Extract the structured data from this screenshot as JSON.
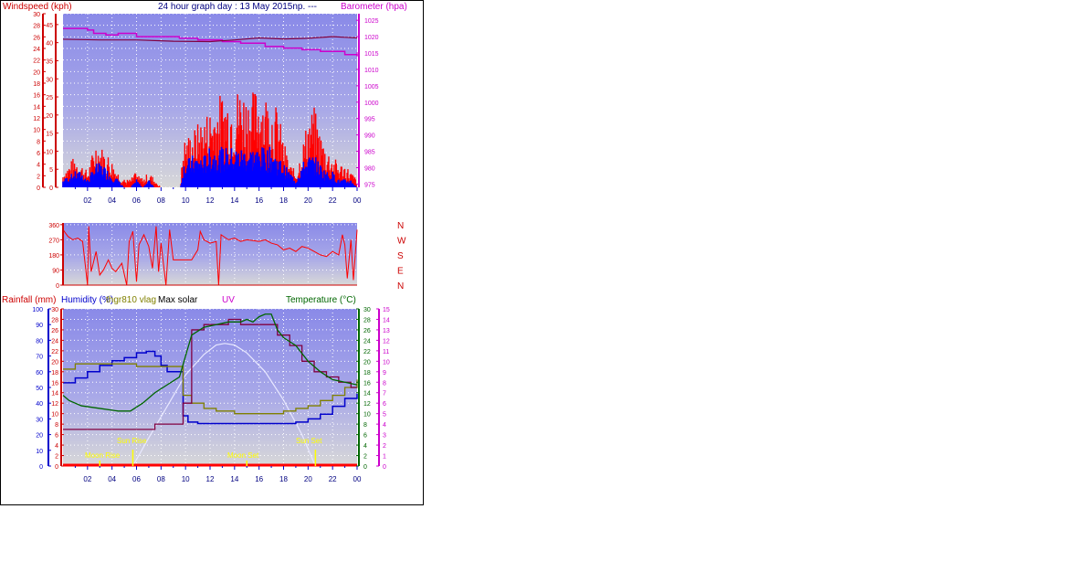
{
  "colors": {
    "wind_gust": "#ff0000",
    "wind_avg": "#0000ff",
    "barometer": "#cc00cc",
    "barometer2": "#800040",
    "direction": "#ff0000",
    "humidity": "#0000cc",
    "temperature": "#006600",
    "sensor": "#808000",
    "uv": "#cc00cc",
    "solar_max": "#e8e8ff",
    "rain": "#ff0000",
    "astro": "#ffff00",
    "axis_red": "#cc0000",
    "axis_blue": "#0000cc",
    "axis_green": "#006600",
    "axis_magenta": "#cc00cc"
  },
  "header": {
    "wind_label": "Windspeed (kph)",
    "title": "24 hour graph day : 13 May 2015np. ---",
    "baro_label": "Barometer (hpa)"
  },
  "bottom_header": {
    "rain_label": "Rainfall (mm)",
    "humidity_label": "Humidity (%)",
    "sensor_label": "thgr810 vlag",
    "solar_label": "Max solar",
    "uv_label": "UV",
    "temp_label": "Temperature (°C)"
  },
  "hour_labels": [
    "02",
    "04",
    "06",
    "08",
    "10",
    "12",
    "14",
    "16",
    "18",
    "20",
    "22",
    "00"
  ],
  "astro": {
    "moon_rise": "Moon Rise",
    "sun_rise": "Sun Rise",
    "moon_set": "Moon Set",
    "sun_set": "Sun Set"
  },
  "chart_data": [
    {
      "type": "bar",
      "name_key": "wind",
      "x_range": [
        0,
        24
      ],
      "left_axis": {
        "ticks": [
          0,
          2,
          4,
          6,
          8,
          10,
          12,
          14,
          16,
          18,
          20,
          22,
          24,
          26,
          28,
          30
        ],
        "range": [
          0,
          30
        ]
      },
      "inner_axis": {
        "ticks": [
          0,
          5,
          10,
          15,
          20,
          25,
          30,
          35,
          40,
          45
        ],
        "range": [
          0,
          48
        ]
      },
      "right_axis": {
        "ticks": [
          975,
          980,
          985,
          990,
          995,
          1000,
          1005,
          1010,
          1015,
          1020,
          1025
        ],
        "range": [
          974,
          1027
        ]
      },
      "gust_profile_kph": [
        [
          0,
          2
        ],
        [
          1,
          4
        ],
        [
          1.5,
          3
        ],
        [
          2,
          2
        ],
        [
          2.7,
          6
        ],
        [
          3.2,
          5
        ],
        [
          3.8,
          4
        ],
        [
          4.5,
          2
        ],
        [
          5,
          1
        ],
        [
          5.5,
          1
        ],
        [
          6,
          2
        ],
        [
          6.5,
          1
        ],
        [
          7,
          2
        ],
        [
          7.5,
          1
        ],
        [
          8,
          0
        ],
        [
          8.5,
          0
        ],
        [
          9,
          0
        ],
        [
          9.6,
          0
        ],
        [
          9.8,
          6
        ],
        [
          10.5,
          7
        ],
        [
          11,
          8
        ],
        [
          11.5,
          9
        ],
        [
          12,
          10
        ],
        [
          12.5,
          11
        ],
        [
          13,
          12
        ],
        [
          13.5,
          12
        ],
        [
          14,
          12
        ],
        [
          14.5,
          13
        ],
        [
          15,
          12
        ],
        [
          15.5,
          12
        ],
        [
          16,
          13
        ],
        [
          16.5,
          12
        ],
        [
          17,
          11
        ],
        [
          17.5,
          10
        ],
        [
          18,
          6
        ],
        [
          18.5,
          3
        ],
        [
          19,
          2
        ],
        [
          19.5,
          5
        ],
        [
          20,
          9
        ],
        [
          20.5,
          10
        ],
        [
          21,
          7
        ],
        [
          21.5,
          5
        ],
        [
          22,
          4
        ],
        [
          22.5,
          3
        ],
        [
          23,
          3
        ],
        [
          23.5,
          2
        ],
        [
          24,
          1
        ]
      ],
      "avg_profile_kph": [
        [
          0,
          1
        ],
        [
          1,
          2
        ],
        [
          1.5,
          2
        ],
        [
          2,
          1
        ],
        [
          2.7,
          3
        ],
        [
          3.2,
          3
        ],
        [
          3.8,
          2
        ],
        [
          4.5,
          1
        ],
        [
          5,
          0
        ],
        [
          5.5,
          0
        ],
        [
          6,
          1
        ],
        [
          6.5,
          0
        ],
        [
          7,
          1
        ],
        [
          7.5,
          0
        ],
        [
          8,
          0
        ],
        [
          8.5,
          0
        ],
        [
          9,
          0
        ],
        [
          9.6,
          0
        ],
        [
          9.8,
          3
        ],
        [
          10.5,
          4
        ],
        [
          11,
          4
        ],
        [
          11.5,
          4
        ],
        [
          12,
          5
        ],
        [
          12.5,
          5
        ],
        [
          13,
          5
        ],
        [
          13.5,
          5
        ],
        [
          14,
          5
        ],
        [
          14.5,
          5
        ],
        [
          15,
          5
        ],
        [
          15.5,
          5
        ],
        [
          16,
          5
        ],
        [
          16.5,
          5
        ],
        [
          17,
          5
        ],
        [
          17.5,
          4
        ],
        [
          18,
          3
        ],
        [
          18.5,
          2
        ],
        [
          19,
          1
        ],
        [
          19.5,
          3
        ],
        [
          20,
          4
        ],
        [
          20.5,
          4
        ],
        [
          21,
          3
        ],
        [
          21.5,
          2
        ],
        [
          22,
          2
        ],
        [
          22.5,
          1
        ],
        [
          23,
          1
        ],
        [
          23.5,
          1
        ],
        [
          24,
          0
        ]
      ],
      "barometer_hpa": [
        [
          0,
          1022.5
        ],
        [
          2,
          1022
        ],
        [
          2.5,
          1021
        ],
        [
          3.5,
          1020.5
        ],
        [
          4.5,
          1021
        ],
        [
          6,
          1020
        ],
        [
          8,
          1020
        ],
        [
          9.5,
          1019.5
        ],
        [
          11,
          1019
        ],
        [
          13,
          1018.5
        ],
        [
          14.5,
          1018
        ],
        [
          16.5,
          1017
        ],
        [
          18,
          1016.5
        ],
        [
          19.5,
          1016
        ],
        [
          21,
          1015.5
        ],
        [
          23,
          1014.5
        ],
        [
          24,
          1014
        ]
      ],
      "barometer2_hpa": [
        [
          0,
          1019.2
        ],
        [
          3,
          1019
        ],
        [
          6,
          1019
        ],
        [
          9,
          1018.6
        ],
        [
          12,
          1018.5
        ],
        [
          14,
          1019
        ],
        [
          16,
          1019.6
        ],
        [
          18,
          1019.3
        ],
        [
          20,
          1019.5
        ],
        [
          22,
          1020
        ],
        [
          24,
          1019.6
        ]
      ]
    },
    {
      "type": "line",
      "name_key": "wind_direction",
      "x_range": [
        0,
        24
      ],
      "left_axis": {
        "ticks": [
          0,
          90,
          180,
          270,
          360
        ],
        "range": [
          0,
          370
        ]
      },
      "compass_labels": [
        "N",
        "W",
        "S",
        "E",
        "N"
      ],
      "direction_deg": [
        [
          0,
          330
        ],
        [
          0.4,
          290
        ],
        [
          0.8,
          270
        ],
        [
          1.2,
          280
        ],
        [
          1.6,
          260
        ],
        [
          2,
          0
        ],
        [
          2.1,
          350
        ],
        [
          2.3,
          80
        ],
        [
          2.7,
          200
        ],
        [
          3,
          60
        ],
        [
          3.3,
          90
        ],
        [
          3.7,
          150
        ],
        [
          4,
          100
        ],
        [
          4.3,
          80
        ],
        [
          4.8,
          130
        ],
        [
          5.2,
          0
        ],
        [
          5.4,
          260
        ],
        [
          5.7,
          320
        ],
        [
          6,
          20
        ],
        [
          6.2,
          240
        ],
        [
          6.6,
          300
        ],
        [
          7,
          230
        ],
        [
          7.3,
          100
        ],
        [
          7.6,
          350
        ],
        [
          7.8,
          80
        ],
        [
          8,
          250
        ],
        [
          8.4,
          0
        ],
        [
          8.7,
          330
        ],
        [
          9,
          150
        ],
        [
          9.5,
          150
        ],
        [
          10.5,
          150
        ],
        [
          11,
          210
        ],
        [
          11.2,
          320
        ],
        [
          11.5,
          270
        ],
        [
          12,
          250
        ],
        [
          12.5,
          260
        ],
        [
          12.7,
          0
        ],
        [
          12.9,
          300
        ],
        [
          13.5,
          270
        ],
        [
          14,
          280
        ],
        [
          14.5,
          260
        ],
        [
          15,
          270
        ],
        [
          15.5,
          265
        ],
        [
          16,
          260
        ],
        [
          16.5,
          270
        ],
        [
          17,
          250
        ],
        [
          17.5,
          240
        ],
        [
          18,
          210
        ],
        [
          18.5,
          220
        ],
        [
          19,
          200
        ],
        [
          19.5,
          230
        ],
        [
          20,
          220
        ],
        [
          20.5,
          200
        ],
        [
          21,
          180
        ],
        [
          21.5,
          170
        ],
        [
          22,
          200
        ],
        [
          22.5,
          180
        ],
        [
          22.8,
          300
        ],
        [
          23,
          240
        ],
        [
          23.2,
          40
        ],
        [
          23.5,
          270
        ],
        [
          23.7,
          30
        ],
        [
          24,
          330
        ]
      ]
    },
    {
      "type": "line",
      "name_key": "bottom",
      "x_range": [
        0,
        24
      ],
      "humidity_axis": {
        "ticks": [
          0,
          10,
          20,
          30,
          40,
          50,
          60,
          70,
          80,
          90,
          100
        ],
        "range": [
          0,
          100
        ]
      },
      "rain_axis": {
        "ticks": [
          0,
          2,
          4,
          6,
          8,
          10,
          12,
          14,
          16,
          18,
          20,
          22,
          24,
          26,
          28,
          30
        ],
        "range": [
          0,
          30
        ]
      },
      "temp_axis": {
        "ticks": [
          0,
          2,
          4,
          6,
          8,
          10,
          12,
          14,
          16,
          18,
          20,
          22,
          24,
          26,
          28,
          30
        ],
        "range": [
          0,
          30
        ]
      },
      "uv_axis": {
        "ticks": [
          0,
          1,
          2,
          3,
          4,
          5,
          6,
          7,
          8,
          9,
          10,
          11,
          12,
          13,
          14,
          15
        ],
        "range": [
          0,
          15
        ]
      },
      "humidity_pct": [
        [
          0,
          53
        ],
        [
          1,
          56
        ],
        [
          2,
          60
        ],
        [
          3,
          64
        ],
        [
          4,
          67
        ],
        [
          5,
          69
        ],
        [
          6,
          72
        ],
        [
          6.8,
          73
        ],
        [
          7.5,
          70
        ],
        [
          8,
          64
        ],
        [
          8.5,
          60
        ],
        [
          9.6,
          60
        ],
        [
          9.8,
          32
        ],
        [
          10.2,
          28
        ],
        [
          11,
          27
        ],
        [
          13,
          27
        ],
        [
          15,
          27
        ],
        [
          17,
          27
        ],
        [
          18,
          27
        ],
        [
          19,
          28
        ],
        [
          20,
          30
        ],
        [
          21,
          33
        ],
        [
          22,
          38
        ],
        [
          23,
          43
        ],
        [
          24,
          46
        ]
      ],
      "temperature_c": [
        [
          0,
          13.5
        ],
        [
          0.5,
          12.5
        ],
        [
          1.5,
          11.5
        ],
        [
          3,
          11
        ],
        [
          4.5,
          10.5
        ],
        [
          5.5,
          10.5
        ],
        [
          6.5,
          12
        ],
        [
          7.5,
          14
        ],
        [
          8.5,
          15.5
        ],
        [
          9.5,
          17
        ],
        [
          10.5,
          25
        ],
        [
          11.5,
          26.5
        ],
        [
          12.5,
          27
        ],
        [
          13.5,
          27.5
        ],
        [
          14.5,
          27.5
        ],
        [
          15,
          28
        ],
        [
          15.5,
          27.5
        ],
        [
          16,
          28.5
        ],
        [
          16.5,
          29
        ],
        [
          17,
          29
        ],
        [
          17.5,
          26
        ],
        [
          18,
          24.5
        ],
        [
          19,
          23
        ],
        [
          20,
          20
        ],
        [
          21,
          18
        ],
        [
          22,
          16.5
        ],
        [
          23,
          16
        ],
        [
          24,
          15.5
        ]
      ],
      "sensor_c": [
        [
          0,
          18.5
        ],
        [
          1,
          19.5
        ],
        [
          3,
          19.5
        ],
        [
          5,
          19.5
        ],
        [
          6,
          19
        ],
        [
          7,
          19
        ],
        [
          8,
          19
        ],
        [
          9.5,
          19
        ],
        [
          9.8,
          13.5
        ],
        [
          10.5,
          12
        ],
        [
          11.5,
          11
        ],
        [
          12.5,
          10.5
        ],
        [
          14,
          10
        ],
        [
          16,
          10
        ],
        [
          17,
          10
        ],
        [
          18,
          10.5
        ],
        [
          19,
          11
        ],
        [
          20,
          11.5
        ],
        [
          21,
          12.5
        ],
        [
          22,
          13.5
        ],
        [
          23,
          15
        ],
        [
          24,
          16.5
        ]
      ],
      "uv_index": [
        [
          0,
          3.5
        ],
        [
          3,
          3.5
        ],
        [
          5.5,
          3.5
        ],
        [
          6.5,
          3.5
        ],
        [
          7.5,
          4
        ],
        [
          8.5,
          4
        ],
        [
          9.5,
          4
        ],
        [
          9.8,
          6
        ],
        [
          10.5,
          13
        ],
        [
          11.5,
          13.5
        ],
        [
          12.5,
          13.5
        ],
        [
          13.5,
          14
        ],
        [
          14.5,
          13.5
        ],
        [
          15.5,
          13.5
        ],
        [
          16.5,
          13.5
        ],
        [
          17.5,
          12.5
        ],
        [
          18.5,
          11.5
        ],
        [
          19.5,
          10
        ],
        [
          20.5,
          9
        ],
        [
          21.5,
          8.5
        ],
        [
          22.5,
          8
        ],
        [
          23.5,
          7.5
        ],
        [
          24,
          7.5
        ]
      ],
      "solar_max_pct": [
        [
          5.7,
          0
        ],
        [
          7,
          18
        ],
        [
          8.5,
          38
        ],
        [
          10,
          58
        ],
        [
          11.5,
          71
        ],
        [
          12.5,
          77
        ],
        [
          13.2,
          78
        ],
        [
          14,
          77
        ],
        [
          15,
          72
        ],
        [
          16.5,
          60
        ],
        [
          18,
          42
        ],
        [
          19.5,
          20
        ],
        [
          20.6,
          0
        ]
      ],
      "moon_rise_h": 3,
      "sun_rise_h": 5.7,
      "moon_set_h": 15,
      "sun_set_h": 20.6,
      "rain_mm": [
        [
          0,
          0
        ],
        [
          24,
          0
        ]
      ]
    }
  ]
}
